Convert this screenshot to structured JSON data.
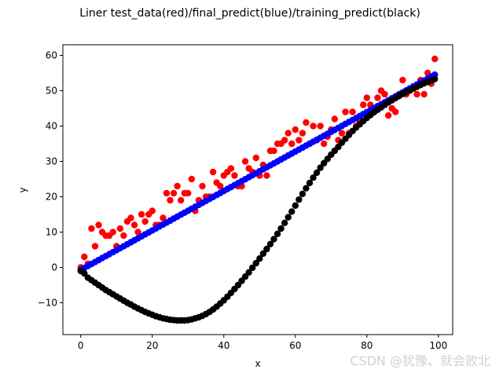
{
  "chart_data": {
    "type": "scatter",
    "title": "Liner test_data(red)/final_predict(blue)/training_predict(black)",
    "xlabel": "x",
    "ylabel": "y",
    "xlim": [
      -5,
      104
    ],
    "ylim": [
      -19,
      63
    ],
    "xticks": [
      0,
      20,
      40,
      60,
      80,
      100
    ],
    "yticks": [
      -10,
      0,
      10,
      20,
      30,
      40,
      50,
      60
    ],
    "grid": false,
    "series": [
      {
        "color": "#ff0000",
        "x": [
          0,
          1,
          2,
          3,
          4,
          5,
          6,
          7,
          8,
          9,
          10,
          11,
          12,
          13,
          14,
          15,
          16,
          17,
          18,
          19,
          20,
          21,
          22,
          23,
          24,
          25,
          26,
          27,
          28,
          29,
          30,
          31,
          32,
          33,
          34,
          35,
          36,
          37,
          38,
          39,
          40,
          41,
          42,
          43,
          44,
          45,
          46,
          47,
          48,
          49,
          50,
          51,
          52,
          53,
          54,
          55,
          56,
          57,
          58,
          59,
          60,
          61,
          62,
          63,
          64,
          65,
          66,
          67,
          68,
          69,
          70,
          71,
          72,
          73,
          74,
          75,
          76,
          77,
          78,
          79,
          80,
          81,
          82,
          83,
          84,
          85,
          86,
          87,
          88,
          89,
          90,
          91,
          92,
          93,
          94,
          95,
          96,
          97,
          98,
          99
        ],
        "y": [
          0,
          3,
          1,
          11,
          6,
          12,
          10,
          9,
          9,
          10,
          6,
          11,
          9,
          13,
          14,
          12,
          10,
          15,
          13,
          15,
          16,
          12,
          12,
          14,
          21,
          19,
          21,
          23,
          19,
          21,
          21,
          25,
          16,
          19,
          23,
          20,
          20,
          27,
          24,
          23,
          26,
          27,
          28,
          26,
          23,
          23,
          30,
          28,
          27,
          31,
          26,
          29,
          26,
          33,
          33,
          35,
          35,
          36,
          38,
          35,
          39,
          36,
          38,
          41,
          35,
          40,
          36,
          40,
          35,
          37,
          39,
          42,
          36,
          38,
          44,
          38,
          44,
          40,
          41,
          46,
          48,
          46,
          44,
          48,
          50,
          49,
          43,
          45,
          44,
          49,
          53,
          49,
          50,
          51,
          49,
          53,
          49,
          55,
          52,
          59
        ]
      },
      {
        "color": "#0000ff",
        "x_start": 0,
        "x_end": 99,
        "count": 100,
        "line": {
          "slope": 0.558,
          "intercept": -0.7
        }
      },
      {
        "color": "#000000",
        "x": [
          0,
          1,
          2,
          3,
          4,
          5,
          6,
          7,
          8,
          9,
          10,
          11,
          12,
          13,
          14,
          15,
          16,
          17,
          18,
          19,
          20,
          21,
          22,
          23,
          24,
          25,
          26,
          27,
          28,
          29,
          30,
          31,
          32,
          33,
          34,
          35,
          36,
          37,
          38,
          39,
          40,
          41,
          42,
          43,
          44,
          45,
          46,
          47,
          48,
          49,
          50,
          51,
          52,
          53,
          54,
          55,
          56,
          57,
          58,
          59,
          60,
          61,
          62,
          63,
          64,
          65,
          66,
          67,
          68,
          69,
          70,
          71,
          72,
          73,
          74,
          75,
          76,
          77,
          78,
          79,
          80,
          81,
          82,
          83,
          84,
          85,
          86,
          87,
          88,
          89,
          90,
          91,
          92,
          93,
          94,
          95,
          96,
          97,
          98,
          99
        ],
        "y": [
          -1.0,
          -1.7,
          -2.9,
          -3.6,
          -4.3,
          -5.0,
          -5.7,
          -6.4,
          -7.0,
          -7.6,
          -8.2,
          -8.8,
          -9.4,
          -10.0,
          -10.5,
          -11.1,
          -11.6,
          -12.1,
          -12.6,
          -13.0,
          -13.4,
          -13.8,
          -14.1,
          -14.4,
          -14.6,
          -14.8,
          -14.9,
          -15.0,
          -15.0,
          -15.0,
          -14.9,
          -14.7,
          -14.4,
          -14.1,
          -13.7,
          -13.2,
          -12.6,
          -11.9,
          -11.1,
          -10.2,
          -9.3,
          -8.3,
          -7.2,
          -6.1,
          -5.0,
          -3.8,
          -2.6,
          -1.4,
          -0.1,
          1.2,
          2.5,
          3.9,
          5.2,
          6.6,
          8.0,
          9.5,
          11.0,
          12.6,
          14.2,
          15.8,
          17.5,
          19.2,
          20.8,
          22.4,
          23.9,
          25.4,
          26.8,
          28.2,
          29.5,
          30.7,
          31.9,
          33.0,
          34.1,
          35.3,
          36.4,
          37.5,
          38.6,
          39.6,
          40.5,
          41.4,
          42.3,
          43.1,
          43.9,
          44.6,
          45.3,
          46.0,
          46.7,
          47.3,
          47.9,
          48.5,
          49.1,
          49.6,
          50.1,
          50.6,
          51.1,
          51.6,
          52.1,
          52.5,
          52.9,
          53.3
        ]
      }
    ]
  },
  "watermark": "CSDN @犹豫、就会败北"
}
